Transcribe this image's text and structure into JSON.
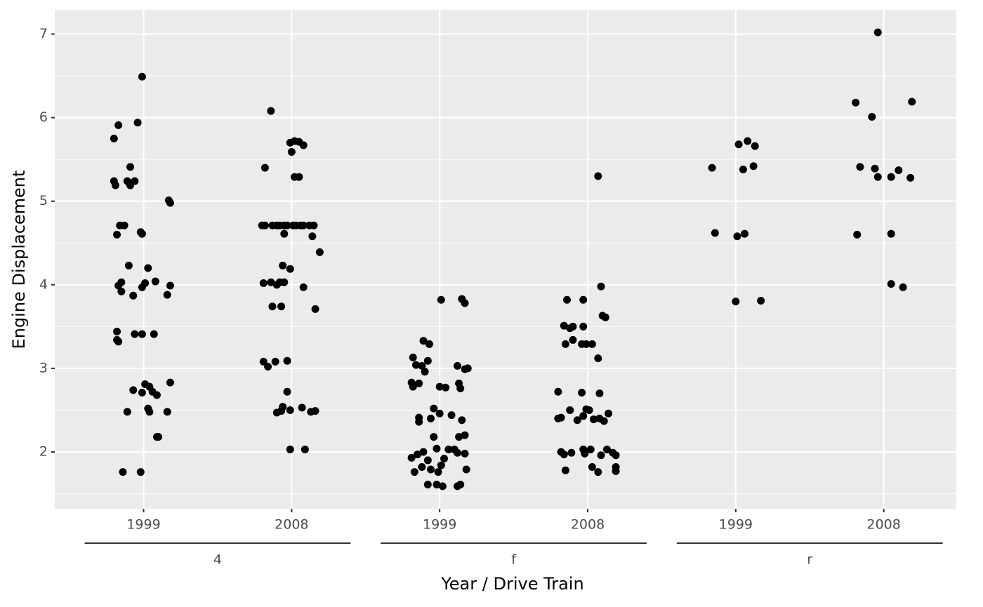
{
  "chart_data": {
    "type": "scatter",
    "x_label": "Year / Drive Train",
    "y_label": "Engine Displacement",
    "xlim": [
      0.4,
      6.49
    ],
    "ylim": [
      1.32,
      7.29
    ],
    "xticks": [
      {
        "value": 1,
        "label": "1999"
      },
      {
        "value": 2,
        "label": "2008"
      },
      {
        "value": 3,
        "label": "1999"
      },
      {
        "value": 4,
        "label": "2008"
      },
      {
        "value": 5,
        "label": "1999"
      },
      {
        "value": 6,
        "label": "2008"
      }
    ],
    "yticks": [
      2,
      3,
      4,
      5,
      6,
      7
    ],
    "yminor": [
      1.5,
      2.5,
      3.5,
      4.5,
      5.5,
      6.5
    ],
    "groups": [
      {
        "label": "4",
        "from": 1,
        "to": 2
      },
      {
        "label": "f",
        "from": 3,
        "to": 4
      },
      {
        "label": "r",
        "from": 5,
        "to": 6
      }
    ],
    "grid": true,
    "color": "#000000",
    "x": [
      0.99,
      0.83,
      0.96,
      0.8,
      0.8,
      0.81,
      0.89,
      0.94,
      0.91,
      0.91,
      0.84,
      0.87,
      0.82,
      0.98,
      0.99,
      0.9,
      1.03,
      0.83,
      0.85,
      0.85,
      0.93,
      0.99,
      1.01,
      1.08,
      1.18,
      1.16,
      1.17,
      1.18,
      0.82,
      0.82,
      0.83,
      0.94,
      0.99,
      1.07,
      1.18,
      1.01,
      1.04,
      0.93,
      0.99,
      1.06,
      1.09,
      0.89,
      1.03,
      1.04,
      1.16,
      1.09,
      1.1,
      0.86,
      0.98,
      1.86,
      1.82,
      1.99,
      2.02,
      2.05,
      2.08,
      2.0,
      2.02,
      2.05,
      1.8,
      1.82,
      1.87,
      1.9,
      1.92,
      1.95,
      1.97,
      2.01,
      2.03,
      2.06,
      2.08,
      2.12,
      2.15,
      1.95,
      2.14,
      2.19,
      1.94,
      1.99,
      1.81,
      1.86,
      1.9,
      1.92,
      1.95,
      2.08,
      1.87,
      1.93,
      2.16,
      1.81,
      1.89,
      1.97,
      1.84,
      1.97,
      1.9,
      1.93,
      1.94,
      1.99,
      2.07,
      2.13,
      2.16,
      1.99,
      2.09,
      3.01,
      3.15,
      3.17,
      2.89,
      2.93,
      2.82,
      2.92,
      2.84,
      2.88,
      2.9,
      3.12,
      3.17,
      3.19,
      2.81,
      2.86,
      2.82,
      3.0,
      3.04,
      3.13,
      3.14,
      2.96,
      3.0,
      2.86,
      2.94,
      2.86,
      3.08,
      3.15,
      2.96,
      3.13,
      3.17,
      2.81,
      2.85,
      2.89,
      2.92,
      2.98,
      3.03,
      3.06,
      3.12,
      3.17,
      3.1,
      2.83,
      2.88,
      2.94,
      2.99,
      3.01,
      3.18,
      2.92,
      2.98,
      3.02,
      3.12,
      3.14,
      4.07,
      3.86,
      3.97,
      4.09,
      4.1,
      4.12,
      3.84,
      3.88,
      3.9,
      3.97,
      3.9,
      3.85,
      3.96,
      3.99,
      4.03,
      4.07,
      3.8,
      3.96,
      4.08,
      3.8,
      3.82,
      3.88,
      3.93,
      3.97,
      3.99,
      4.01,
      4.04,
      4.08,
      4.11,
      4.14,
      3.82,
      3.84,
      3.89,
      3.97,
      3.98,
      4.02,
      4.09,
      4.13,
      4.17,
      4.19,
      3.85,
      4.03,
      4.07,
      4.19,
      4.19,
      4.84,
      5.02,
      5.08,
      5.13,
      5.05,
      5.12,
      4.86,
      5.01,
      5.06,
      5.0,
      5.17,
      5.96,
      5.81,
      6.19,
      5.92,
      5.84,
      5.94,
      5.96,
      6.1,
      6.05,
      6.18,
      5.82,
      6.05,
      6.05,
      6.13
    ],
    "y": [
      6.49,
      5.91,
      5.94,
      5.75,
      5.24,
      5.19,
      5.24,
      5.24,
      5.41,
      5.19,
      4.71,
      4.71,
      4.6,
      4.63,
      4.61,
      4.23,
      4.2,
      3.99,
      4.03,
      3.92,
      3.87,
      3.97,
      4.02,
      4.04,
      3.99,
      3.88,
      5.01,
      4.98,
      3.44,
      3.34,
      3.32,
      3.41,
      3.41,
      3.41,
      2.83,
      2.81,
      2.78,
      2.74,
      2.71,
      2.72,
      2.68,
      2.48,
      2.52,
      2.48,
      2.48,
      2.18,
      2.18,
      1.76,
      1.76,
      6.08,
      5.4,
      5.7,
      5.72,
      5.71,
      5.67,
      5.59,
      5.29,
      5.29,
      4.71,
      4.71,
      4.71,
      4.71,
      4.71,
      4.71,
      4.71,
      4.71,
      4.71,
      4.71,
      4.71,
      4.71,
      4.71,
      4.61,
      4.58,
      4.39,
      4.23,
      4.19,
      4.02,
      4.03,
      4.0,
      4.03,
      4.03,
      3.97,
      3.74,
      3.74,
      3.71,
      3.08,
      3.08,
      3.09,
      3.02,
      2.72,
      2.47,
      2.49,
      2.54,
      2.5,
      2.53,
      2.48,
      2.49,
      2.03,
      2.03,
      3.82,
      3.83,
      3.78,
      3.33,
      3.29,
      3.13,
      3.09,
      3.04,
      3.03,
      2.96,
      3.03,
      2.99,
      3.0,
      2.83,
      2.82,
      2.78,
      2.78,
      2.77,
      2.82,
      2.76,
      2.52,
      2.46,
      2.41,
      2.4,
      2.36,
      2.44,
      2.38,
      2.18,
      2.18,
      2.2,
      1.93,
      1.97,
      2.0,
      1.9,
      2.04,
      1.92,
      2.03,
      1.99,
      1.98,
      2.03,
      1.76,
      1.82,
      1.79,
      1.76,
      1.84,
      1.79,
      1.61,
      1.61,
      1.59,
      1.59,
      1.61,
      5.3,
      3.82,
      3.82,
      3.98,
      3.63,
      3.61,
      3.51,
      3.48,
      3.5,
      3.5,
      3.34,
      3.29,
      3.29,
      3.29,
      3.29,
      3.12,
      2.72,
      2.71,
      2.7,
      2.4,
      2.41,
      2.5,
      2.38,
      2.43,
      2.51,
      2.5,
      2.39,
      2.4,
      2.37,
      2.46,
      2.0,
      1.97,
      1.99,
      2.03,
      1.98,
      2.03,
      1.96,
      2.03,
      1.99,
      1.96,
      1.78,
      1.82,
      1.76,
      1.82,
      1.77,
      5.4,
      5.68,
      5.72,
      5.66,
      5.38,
      5.42,
      4.62,
      4.58,
      4.61,
      3.8,
      3.81,
      7.02,
      6.18,
      6.19,
      6.01,
      5.41,
      5.39,
      5.29,
      5.37,
      5.29,
      5.28,
      4.6,
      4.61,
      4.01,
      3.97
    ]
  }
}
